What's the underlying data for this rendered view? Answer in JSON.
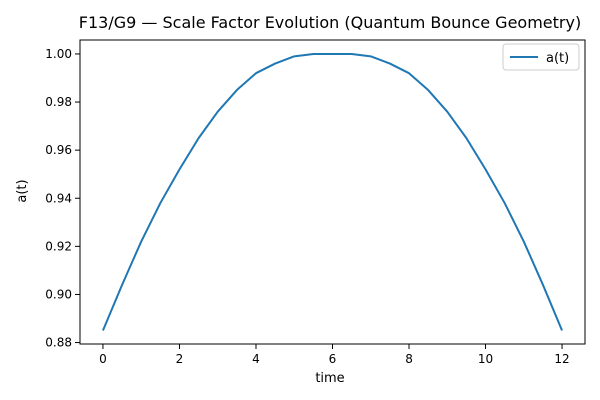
{
  "chart_data": {
    "type": "line",
    "title": "F13/G9 — Scale Factor Evolution (Quantum Bounce Geometry)",
    "xlabel": "time",
    "ylabel": "a(t)",
    "xlim": [
      -0.6,
      12.6
    ],
    "ylim": [
      0.8794,
      1.0058
    ],
    "xticks": [
      0,
      2,
      4,
      6,
      8,
      10,
      12
    ],
    "yticks": [
      0.88,
      0.9,
      0.92,
      0.94,
      0.96,
      0.98,
      1.0
    ],
    "ytick_labels": [
      "0.88",
      "0.90",
      "0.92",
      "0.94",
      "0.96",
      "0.98",
      "1.00"
    ],
    "grid": false,
    "legend_position": "upper right",
    "series": [
      {
        "name": "a(t)",
        "color": "#1f77b4",
        "x": [
          0,
          0.5,
          1,
          1.5,
          2,
          2.5,
          3,
          3.5,
          4,
          4.5,
          5,
          5.5,
          6,
          6.5,
          7,
          7.5,
          8,
          8.5,
          9,
          9.5,
          10,
          10.5,
          11,
          11.5,
          12
        ],
        "y": [
          0.885,
          0.904,
          0.922,
          0.938,
          0.952,
          0.965,
          0.976,
          0.985,
          0.992,
          0.996,
          0.999,
          1.0,
          1.0,
          1.0,
          0.999,
          0.996,
          0.992,
          0.985,
          0.976,
          0.965,
          0.952,
          0.938,
          0.922,
          0.904,
          0.885
        ]
      }
    ]
  }
}
